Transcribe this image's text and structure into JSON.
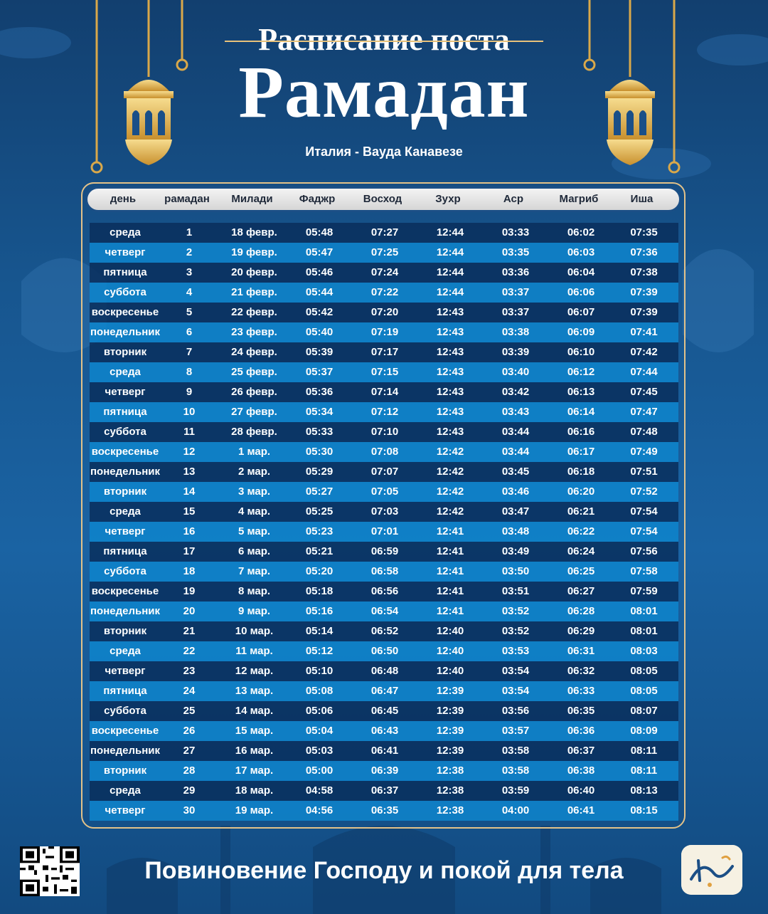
{
  "header": {
    "subtitle": "Расписание поста",
    "title": "Рамадан",
    "location": "Италия - Ваудa Канавезе"
  },
  "table": {
    "columns": [
      "день",
      "рамадан",
      "Милади",
      "Фаджр",
      "Восход",
      "Зухр",
      "Аср",
      "Магриб",
      "Иша"
    ],
    "rows": [
      [
        "среда",
        "1",
        "18 февр.",
        "05:48",
        "07:27",
        "12:44",
        "03:33",
        "06:02",
        "07:35"
      ],
      [
        "четверг",
        "2",
        "19 февр.",
        "05:47",
        "07:25",
        "12:44",
        "03:35",
        "06:03",
        "07:36"
      ],
      [
        "пятница",
        "3",
        "20 февр.",
        "05:46",
        "07:24",
        "12:44",
        "03:36",
        "06:04",
        "07:38"
      ],
      [
        "суббота",
        "4",
        "21 февр.",
        "05:44",
        "07:22",
        "12:44",
        "03:37",
        "06:06",
        "07:39"
      ],
      [
        "воскресенье",
        "5",
        "22 февр.",
        "05:42",
        "07:20",
        "12:43",
        "03:37",
        "06:07",
        "07:39"
      ],
      [
        "понедельник",
        "6",
        "23 февр.",
        "05:40",
        "07:19",
        "12:43",
        "03:38",
        "06:09",
        "07:41"
      ],
      [
        "вторник",
        "7",
        "24 февр.",
        "05:39",
        "07:17",
        "12:43",
        "03:39",
        "06:10",
        "07:42"
      ],
      [
        "среда",
        "8",
        "25 февр.",
        "05:37",
        "07:15",
        "12:43",
        "03:40",
        "06:12",
        "07:44"
      ],
      [
        "четверг",
        "9",
        "26 февр.",
        "05:36",
        "07:14",
        "12:43",
        "03:42",
        "06:13",
        "07:45"
      ],
      [
        "пятница",
        "10",
        "27 февр.",
        "05:34",
        "07:12",
        "12:43",
        "03:43",
        "06:14",
        "07:47"
      ],
      [
        "суббота",
        "11",
        "28 февр.",
        "05:33",
        "07:10",
        "12:43",
        "03:44",
        "06:16",
        "07:48"
      ],
      [
        "воскресенье",
        "12",
        "1 мар.",
        "05:30",
        "07:08",
        "12:42",
        "03:44",
        "06:17",
        "07:49"
      ],
      [
        "понедельник",
        "13",
        "2 мар.",
        "05:29",
        "07:07",
        "12:42",
        "03:45",
        "06:18",
        "07:51"
      ],
      [
        "вторник",
        "14",
        "3 мар.",
        "05:27",
        "07:05",
        "12:42",
        "03:46",
        "06:20",
        "07:52"
      ],
      [
        "среда",
        "15",
        "4 мар.",
        "05:25",
        "07:03",
        "12:42",
        "03:47",
        "06:21",
        "07:54"
      ],
      [
        "четверг",
        "16",
        "5 мар.",
        "05:23",
        "07:01",
        "12:41",
        "03:48",
        "06:22",
        "07:54"
      ],
      [
        "пятница",
        "17",
        "6 мар.",
        "05:21",
        "06:59",
        "12:41",
        "03:49",
        "06:24",
        "07:56"
      ],
      [
        "суббота",
        "18",
        "7 мар.",
        "05:20",
        "06:58",
        "12:41",
        "03:50",
        "06:25",
        "07:58"
      ],
      [
        "воскресенье",
        "19",
        "8 мар.",
        "05:18",
        "06:56",
        "12:41",
        "03:51",
        "06:27",
        "07:59"
      ],
      [
        "понедельник",
        "20",
        "9 мар.",
        "05:16",
        "06:54",
        "12:41",
        "03:52",
        "06:28",
        "08:01"
      ],
      [
        "вторник",
        "21",
        "10 мар.",
        "05:14",
        "06:52",
        "12:40",
        "03:52",
        "06:29",
        "08:01"
      ],
      [
        "среда",
        "22",
        "11 мар.",
        "05:12",
        "06:50",
        "12:40",
        "03:53",
        "06:31",
        "08:03"
      ],
      [
        "четверг",
        "23",
        "12 мар.",
        "05:10",
        "06:48",
        "12:40",
        "03:54",
        "06:32",
        "08:05"
      ],
      [
        "пятница",
        "24",
        "13 мар.",
        "05:08",
        "06:47",
        "12:39",
        "03:54",
        "06:33",
        "08:05"
      ],
      [
        "суббота",
        "25",
        "14 мар.",
        "05:06",
        "06:45",
        "12:39",
        "03:56",
        "06:35",
        "08:07"
      ],
      [
        "воскресенье",
        "26",
        "15 мар.",
        "05:04",
        "06:43",
        "12:39",
        "03:57",
        "06:36",
        "08:09"
      ],
      [
        "понедельник",
        "27",
        "16 мар.",
        "05:03",
        "06:41",
        "12:39",
        "03:58",
        "06:37",
        "08:11"
      ],
      [
        "вторник",
        "28",
        "17 мар.",
        "05:00",
        "06:39",
        "12:38",
        "03:58",
        "06:38",
        "08:11"
      ],
      [
        "среда",
        "29",
        "18 мар.",
        "04:58",
        "06:37",
        "12:38",
        "03:59",
        "06:40",
        "08:13"
      ],
      [
        "четверг",
        "30",
        "19 мар.",
        "04:56",
        "06:35",
        "12:38",
        "04:00",
        "06:41",
        "08:15"
      ]
    ]
  },
  "footer": {
    "slogan": "Повиновение Господу и покой для тела",
    "qr_icon": "qr-code-icon",
    "logo_icon": "app-logo-icon"
  },
  "colors": {
    "gold": "#e3c289",
    "row_dark": "#092d5a",
    "row_light": "#0e85cd"
  }
}
